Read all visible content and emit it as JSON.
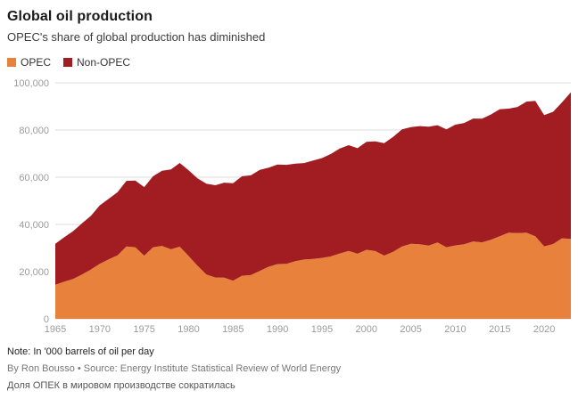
{
  "page": {
    "title": "Global oil production",
    "subtitle": "OPEC's share of global production has diminished",
    "note": "Note: In '000 barrels of oil per day",
    "credit": "By Ron Bousso • Source: Energy Institute Statistical Review of World Energy",
    "caption_ru": "Доля ОПЕК в мировом производстве сократилась"
  },
  "chart_data": {
    "type": "area",
    "stacked": true,
    "title": "Global oil production",
    "subtitle": "OPEC's share of global production has diminished",
    "unit": "'000 barrels of oil per day",
    "ylim": [
      0,
      100000
    ],
    "y_ticks": [
      0,
      20000,
      40000,
      60000,
      80000,
      100000
    ],
    "x_label_ticks": [
      1965,
      1970,
      1975,
      1980,
      1985,
      1990,
      1995,
      2000,
      2005,
      2010,
      2015,
      2020
    ],
    "grid": true,
    "legend_position": "top-left",
    "x": [
      1965,
      1966,
      1967,
      1968,
      1969,
      1970,
      1971,
      1972,
      1973,
      1974,
      1975,
      1976,
      1977,
      1978,
      1979,
      1980,
      1981,
      1982,
      1983,
      1984,
      1985,
      1986,
      1987,
      1988,
      1989,
      1990,
      1991,
      1992,
      1993,
      1994,
      1995,
      1996,
      1997,
      1998,
      1999,
      2000,
      2001,
      2002,
      2003,
      2004,
      2005,
      2006,
      2007,
      2008,
      2009,
      2010,
      2011,
      2012,
      2013,
      2014,
      2015,
      2016,
      2017,
      2018,
      2019,
      2020,
      2021,
      2022,
      2023
    ],
    "series": [
      {
        "name": "OPEC",
        "color": "#E8813B",
        "values": [
          14400,
          15770,
          16850,
          18800,
          20900,
          23300,
          25200,
          26890,
          30630,
          30350,
          26770,
          30330,
          30890,
          29460,
          30580,
          26610,
          22480,
          18780,
          17500,
          17440,
          16180,
          18280,
          18520,
          20320,
          22070,
          23200,
          23270,
          24400,
          25120,
          25400,
          25800,
          26460,
          27710,
          28770,
          27580,
          29230,
          28710,
          26780,
          28400,
          30670,
          31820,
          31570,
          31000,
          32380,
          30330,
          31100,
          31600,
          32800,
          32400,
          33500,
          35000,
          36500,
          36300,
          36500,
          35000,
          30700,
          31700,
          34100,
          33900
        ]
      },
      {
        "name": "Non-OPEC",
        "color": "#A11D21",
        "values": [
          17400,
          18800,
          20270,
          21640,
          22740,
          24760,
          25650,
          26780,
          27830,
          28270,
          29050,
          30080,
          31820,
          33870,
          35470,
          36330,
          37060,
          38520,
          39120,
          40260,
          41290,
          42150,
          42260,
          42790,
          41950,
          42190,
          41960,
          41370,
          40890,
          41680,
          42300,
          43390,
          44450,
          44800,
          44730,
          45750,
          46500,
          47660,
          48660,
          49590,
          49430,
          50090,
          50440,
          49640,
          49950,
          51180,
          51390,
          52080,
          52440,
          53080,
          53830,
          52570,
          53490,
          55540,
          57380,
          55590,
          56040,
          57600,
          62100
        ]
      }
    ]
  }
}
